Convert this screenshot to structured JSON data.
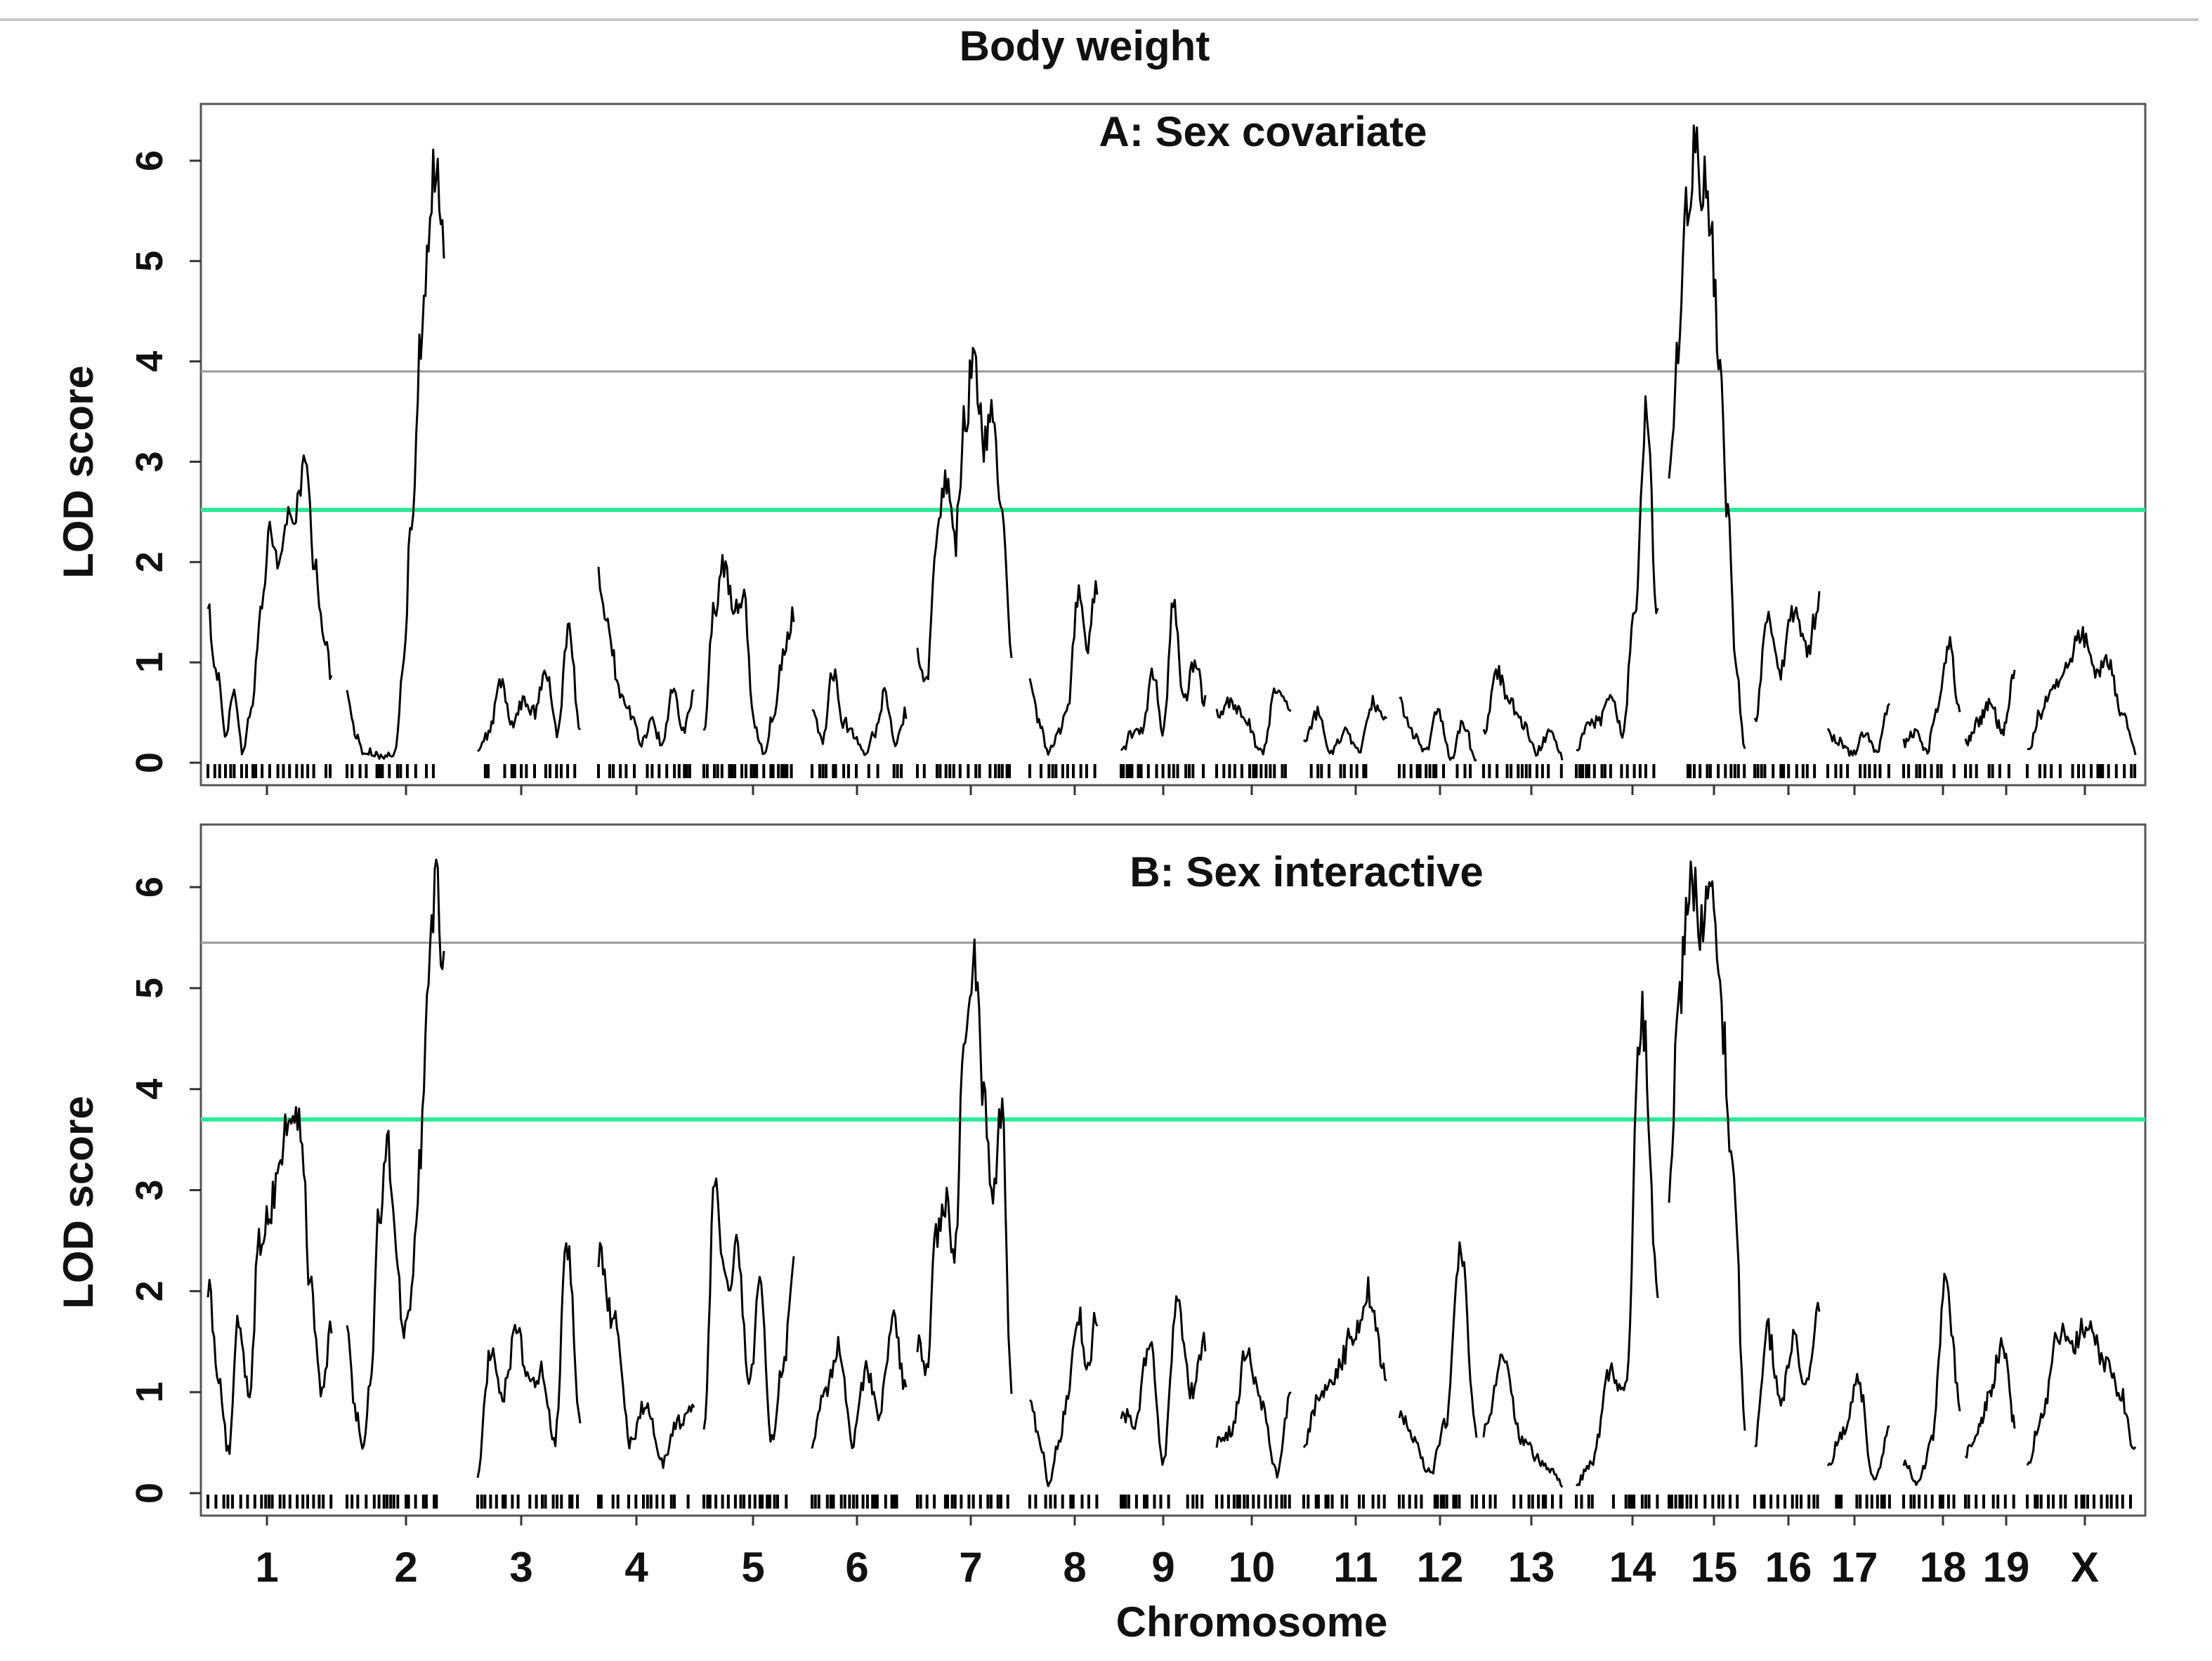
{
  "figure_title": "Body weight",
  "xlabel": "Chromosome",
  "chromosomes": [
    "1",
    "2",
    "3",
    "4",
    "5",
    "6",
    "7",
    "8",
    "9",
    "10",
    "11",
    "12",
    "13",
    "14",
    "15",
    "16",
    "17",
    "18",
    "19",
    "X"
  ],
  "colors": {
    "curve": "#000000",
    "threshold_high": "#9a9a9a",
    "threshold_low": "#2ee89a",
    "frame": "#555555"
  },
  "chart_data": [
    {
      "type": "line",
      "title": "A: Sex covariate",
      "xlabel": "Chromosome",
      "ylabel": "LOD score",
      "ylim": [
        0,
        6.3
      ],
      "yticks": [
        0,
        1,
        2,
        3,
        4,
        5,
        6
      ],
      "thresholds": [
        {
          "value": 3.9,
          "color": "#9a9a9a"
        },
        {
          "value": 2.52,
          "color": "#2ee89a"
        }
      ],
      "series": [
        {
          "chrom": "1",
          "lod": [
            1.5,
            0.9,
            0.3,
            0.7,
            0.1,
            0.6,
            1.5,
            2.3,
            2.0,
            2.4,
            2.5,
            3.0,
            2.0,
            1.3,
            0.9
          ]
        },
        {
          "chrom": "2",
          "lod": [
            0.7,
            0.3,
            0.1,
            0.1,
            0.05,
            0.1,
            0.1,
            1.0,
            2.5,
            4.0,
            5.0,
            6.05,
            5.2
          ]
        },
        {
          "chrom": "3",
          "lod": [
            0.1,
            0.3,
            0.8,
            0.4,
            0.6,
            0.5,
            0.9,
            0.3,
            1.4,
            0.3
          ]
        },
        {
          "chrom": "4",
          "lod": [
            1.9,
            1.3,
            0.7,
            0.5,
            0.2,
            0.4,
            0.2,
            0.7,
            0.3,
            0.7
          ]
        },
        {
          "chrom": "5",
          "lod": [
            0.3,
            1.5,
            2.0,
            1.5,
            1.7,
            0.4,
            0.1,
            0.5,
            1.1,
            1.5
          ]
        },
        {
          "chrom": "6",
          "lod": [
            0.5,
            0.2,
            0.9,
            0.4,
            0.3,
            0.1,
            0.3,
            0.7,
            0.2,
            0.5
          ]
        },
        {
          "chrom": "7",
          "lod": [
            1.1,
            0.8,
            2.3,
            2.9,
            2.2,
            3.4,
            4.0,
            3.2,
            3.6,
            2.5,
            1.0
          ]
        },
        {
          "chrom": "8",
          "lod": [
            0.8,
            0.4,
            0.1,
            0.3,
            0.6,
            1.7,
            1.2,
            1.8
          ]
        },
        {
          "chrom": "9",
          "lod": [
            0.1,
            0.3,
            0.3,
            0.9,
            0.3,
            1.6,
            0.6,
            1.0,
            0.6
          ]
        },
        {
          "chrom": "10",
          "lod": [
            0.5,
            0.6,
            0.4,
            0.1,
            0.7,
            0.5
          ]
        },
        {
          "chrom": "11",
          "lod": [
            0.2,
            0.5,
            0.1,
            0.3,
            0.1,
            0.6,
            0.4
          ]
        },
        {
          "chrom": "12",
          "lod": [
            0.6,
            0.3,
            0.1,
            0.5,
            0.05,
            0.4,
            0.0
          ]
        },
        {
          "chrom": "13",
          "lod": [
            0.3,
            0.9,
            0.6,
            0.4,
            0.1,
            0.3,
            0.05
          ]
        },
        {
          "chrom": "14",
          "lod": [
            0.1,
            0.4,
            0.4,
            0.7,
            0.3,
            1.5,
            3.5,
            1.5
          ]
        },
        {
          "chrom": "15",
          "lod": [
            2.7,
            4.0,
            5.5,
            6.05,
            5.8,
            5.3,
            4.0,
            2.5,
            0.9,
            0.1
          ]
        },
        {
          "chrom": "16",
          "lod": [
            0.4,
            1.5,
            0.9,
            1.5,
            1.1,
            1.6
          ]
        },
        {
          "chrom": "17",
          "lod": [
            0.3,
            0.2,
            0.1,
            0.3,
            0.1,
            0.6
          ]
        },
        {
          "chrom": "18",
          "lod": [
            0.2,
            0.3,
            0.1,
            0.5,
            1.2,
            0.5
          ]
        },
        {
          "chrom": "19",
          "lod": [
            0.2,
            0.4,
            0.6,
            0.3,
            0.9
          ]
        },
        {
          "chrom": "X",
          "lod": [
            0.1,
            0.5,
            0.8,
            1.0,
            1.3,
            0.9,
            1.0,
            0.5,
            0.1
          ]
        }
      ]
    },
    {
      "type": "line",
      "title": "B: Sex interactive",
      "xlabel": "Chromosome",
      "ylabel": "LOD score",
      "ylim": [
        0,
        6.3
      ],
      "yticks": [
        0,
        1,
        2,
        3,
        4,
        5,
        6
      ],
      "thresholds": [
        {
          "value": 5.45,
          "color": "#9a9a9a"
        },
        {
          "value": 3.7,
          "color": "#2ee89a"
        }
      ],
      "series": [
        {
          "chrom": "1",
          "lod": [
            2.1,
            1.2,
            0.4,
            1.7,
            1.0,
            2.5,
            2.8,
            3.3,
            3.8,
            3.6,
            2.0,
            1.0,
            1.6
          ]
        },
        {
          "chrom": "2",
          "lod": [
            1.8,
            0.8,
            0.5,
            1.2,
            2.8,
            3.6,
            2.5,
            1.5,
            2.0,
            3.2,
            5.2,
            6.1,
            5.3
          ]
        },
        {
          "chrom": "3",
          "lod": [
            0.2,
            1.4,
            1.0,
            1.6,
            1.1,
            1.2,
            0.5,
            2.5,
            0.7
          ]
        },
        {
          "chrom": "4",
          "lod": [
            2.4,
            1.7,
            0.5,
            0.9,
            0.3,
            0.7,
            0.9
          ]
        },
        {
          "chrom": "5",
          "lod": [
            0.7,
            3.0,
            2.0,
            2.5,
            1.0,
            2.0,
            0.5,
            1.2,
            2.3
          ]
        },
        {
          "chrom": "6",
          "lod": [
            0.5,
            1.0,
            1.5,
            0.5,
            1.2,
            0.8,
            1.7,
            1.0
          ]
        },
        {
          "chrom": "7",
          "lod": [
            1.5,
            1.2,
            2.5,
            2.9,
            2.4,
            4.5,
            5.35,
            4.0,
            3.0,
            3.8,
            1.0
          ]
        },
        {
          "chrom": "8",
          "lod": [
            1.0,
            0.5,
            0.1,
            0.5,
            1.0,
            1.8,
            1.3,
            1.8
          ]
        },
        {
          "chrom": "9",
          "lod": [
            0.8,
            0.7,
            1.5,
            0.3,
            1.9,
            1.0,
            1.5
          ]
        },
        {
          "chrom": "10",
          "lod": [
            0.5,
            0.6,
            1.4,
            0.9,
            0.2,
            1.0
          ]
        },
        {
          "chrom": "11",
          "lod": [
            0.5,
            1.0,
            1.2,
            1.6,
            2.0,
            1.1
          ]
        },
        {
          "chrom": "12",
          "lod": [
            0.8,
            0.5,
            0.2,
            0.7,
            2.4,
            0.6
          ]
        },
        {
          "chrom": "13",
          "lod": [
            0.6,
            1.3,
            0.5,
            0.3,
            0.1
          ]
        },
        {
          "chrom": "14",
          "lod": [
            0.1,
            0.3,
            1.2,
            1.0,
            4.8,
            2.0
          ]
        },
        {
          "chrom": "15",
          "lod": [
            3.0,
            5.0,
            6.3,
            5.5,
            6.0,
            4.5,
            3.0,
            0.7
          ]
        },
        {
          "chrom": "16",
          "lod": [
            0.5,
            1.6,
            0.9,
            1.5,
            1.1,
            1.8
          ]
        },
        {
          "chrom": "17",
          "lod": [
            0.3,
            0.6,
            1.1,
            0.1,
            0.6
          ]
        },
        {
          "chrom": "18",
          "lod": [
            0.3,
            0.1,
            0.5,
            2.1,
            0.9
          ]
        },
        {
          "chrom": "19",
          "lod": [
            0.4,
            0.6,
            1.0,
            1.5,
            0.7
          ]
        },
        {
          "chrom": "X",
          "lod": [
            0.3,
            0.8,
            1.6,
            1.5,
            1.7,
            1.3,
            1.0,
            0.4
          ]
        }
      ]
    }
  ]
}
